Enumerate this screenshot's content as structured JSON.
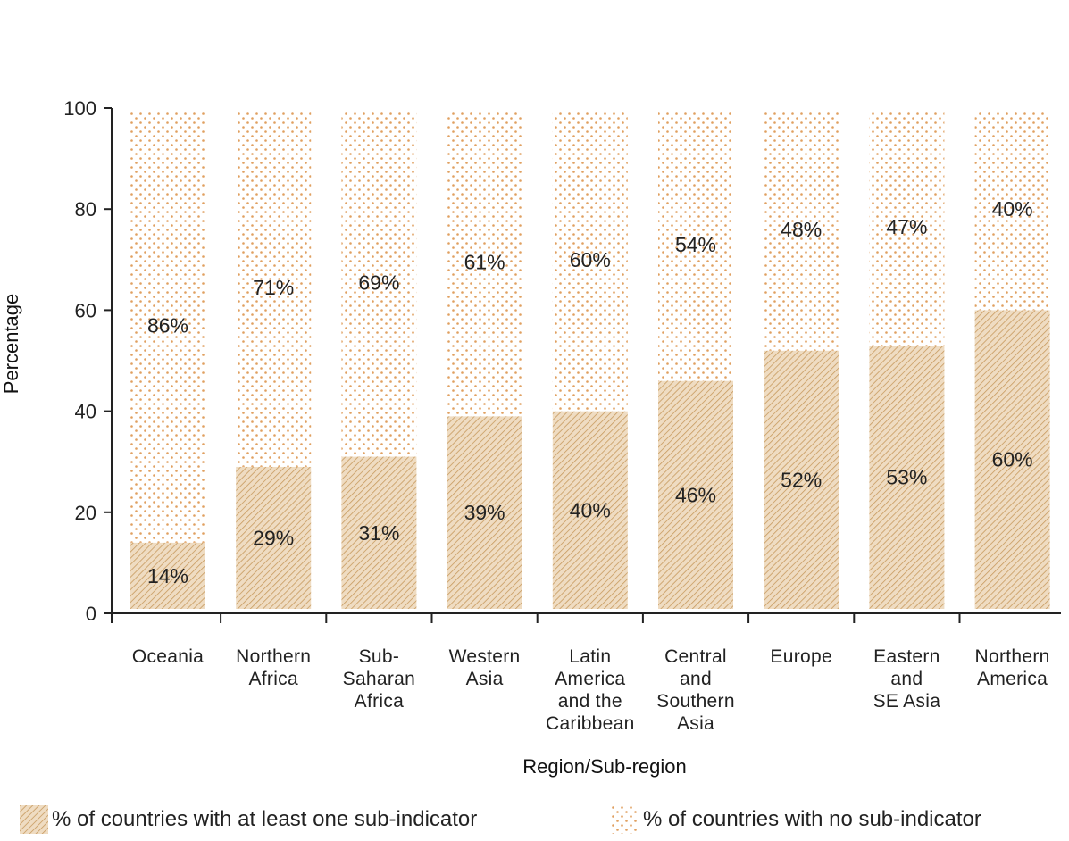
{
  "colors": {
    "hatch": "#c79a5e",
    "hatch_bg": "#efdcc2",
    "dots": "#e0a060",
    "axis": "#222222"
  },
  "legend": {
    "with_sub": "% of countries with at least one sub-indicator",
    "without_sub": "% of countries with no sub-indicator"
  },
  "chart_data": {
    "type": "bar",
    "stacked": true,
    "xlabel": "Region/Sub-region",
    "ylabel": "Percentage",
    "ylim": [
      0,
      100
    ],
    "yticks": [
      0,
      20,
      40,
      60,
      80,
      100
    ],
    "categories": [
      "Oceania",
      "Northern Africa",
      "Sub-Saharan Africa",
      "Western Asia",
      "Latin America and the Caribbean",
      "Central and Southern Asia",
      "Europe",
      "Eastern and SE Asia",
      "Northern America"
    ],
    "category_lines": [
      [
        "Oceania"
      ],
      [
        "Northern",
        "Africa"
      ],
      [
        "Sub-",
        "Saharan",
        "Africa"
      ],
      [
        "Western",
        "Asia"
      ],
      [
        "Latin",
        "America",
        "and the",
        "Caribbean"
      ],
      [
        "Central",
        "and",
        "Southern",
        "Asia"
      ],
      [
        "Europe"
      ],
      [
        "Eastern",
        "and",
        "SE Asia"
      ],
      [
        "Northern",
        "America"
      ]
    ],
    "series": [
      {
        "name": "% of countries with at least one sub-indicator",
        "values": [
          14,
          29,
          31,
          39,
          40,
          46,
          52,
          53,
          60
        ],
        "labels": [
          "14%",
          "29%",
          "31%",
          "39%",
          "40%",
          "46%",
          "52%",
          "53%",
          "60%"
        ]
      },
      {
        "name": "% of countries with no sub-indicator",
        "values": [
          86,
          71,
          69,
          61,
          60,
          54,
          48,
          47,
          40
        ],
        "labels": [
          "86%",
          "71%",
          "69%",
          "61%",
          "60%",
          "54%",
          "48%",
          "47%",
          "40%"
        ]
      }
    ],
    "legend_position": "bottom"
  }
}
